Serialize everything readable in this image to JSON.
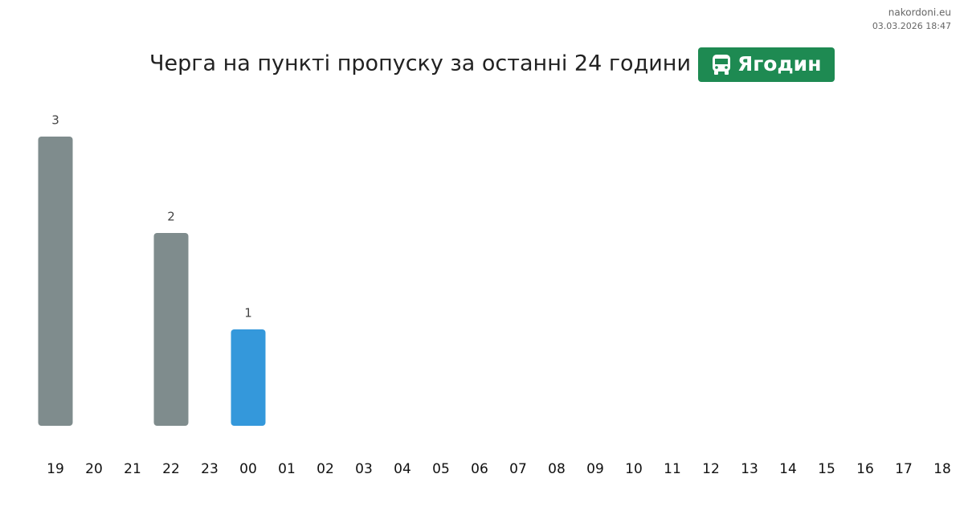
{
  "site": "nakordoni.eu",
  "timestamp": "03.03.2026 18:47",
  "chart_data": {
    "type": "bar",
    "title": "Черга на пункті пропуску за останні 24 години",
    "badge": "Ягодин",
    "badge_color": "#1e8a52",
    "categories": [
      "19",
      "20",
      "21",
      "22",
      "23",
      "00",
      "01",
      "02",
      "03",
      "04",
      "05",
      "06",
      "07",
      "08",
      "09",
      "10",
      "11",
      "12",
      "13",
      "14",
      "15",
      "16",
      "17",
      "18"
    ],
    "values": [
      3,
      0,
      0,
      2,
      0,
      1,
      0,
      0,
      0,
      0,
      0,
      0,
      0,
      0,
      0,
      0,
      0,
      0,
      0,
      0,
      0,
      0,
      0,
      0
    ],
    "colors": [
      "#7f8c8d",
      "#7f8c8d",
      "#7f8c8d",
      "#7f8c8d",
      "#7f8c8d",
      "#3498db",
      "#7f8c8d",
      "#7f8c8d",
      "#7f8c8d",
      "#7f8c8d",
      "#7f8c8d",
      "#7f8c8d",
      "#7f8c8d",
      "#7f8c8d",
      "#7f8c8d",
      "#7f8c8d",
      "#7f8c8d",
      "#7f8c8d",
      "#7f8c8d",
      "#7f8c8d",
      "#7f8c8d",
      "#7f8c8d",
      "#7f8c8d",
      "#7f8c8d"
    ],
    "ylim": [
      0,
      3
    ]
  }
}
